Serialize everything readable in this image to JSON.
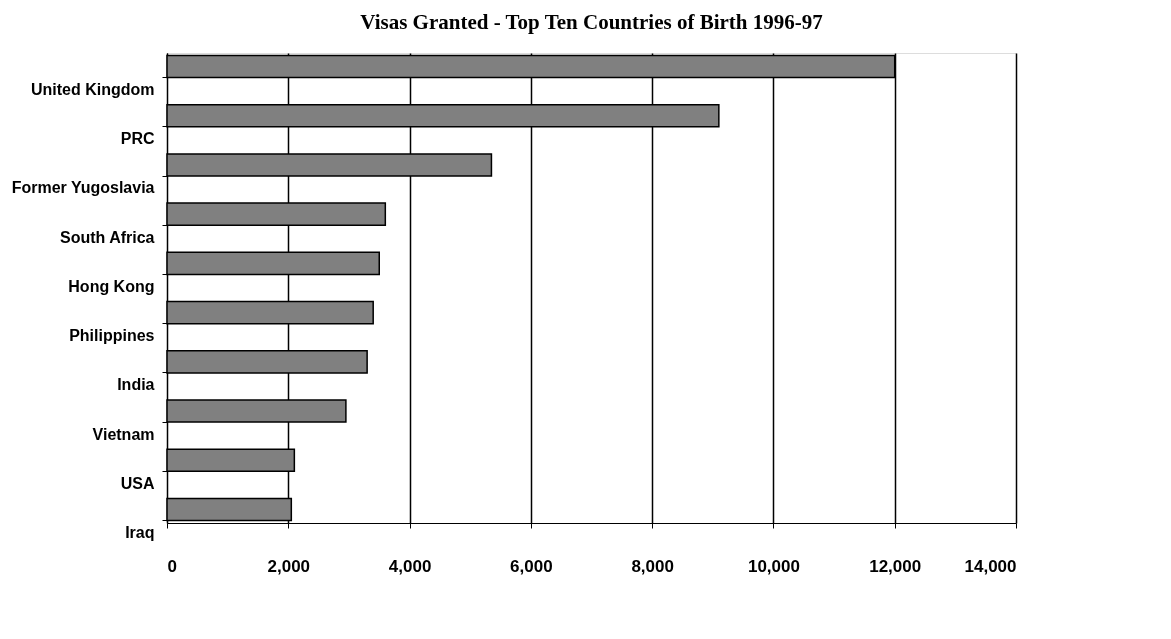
{
  "chart_data": {
    "type": "bar",
    "orientation": "horizontal",
    "title": "Visas Granted - Top Ten Countries of Birth 1996-97",
    "categories": [
      "United Kingdom",
      "PRC",
      "Former Yugoslavia",
      "South Africa",
      "Hong Kong",
      "Philippines",
      "India",
      "Vietnam",
      "USA",
      "Iraq"
    ],
    "values": [
      12000,
      9100,
      5350,
      3600,
      3500,
      3400,
      3300,
      2950,
      2100,
      2050
    ],
    "color": "#808080",
    "xlim": [
      0,
      14000
    ],
    "xticks": [
      {
        "value": 0,
        "label": "0"
      },
      {
        "value": 2000,
        "label": "2,000"
      },
      {
        "value": 4000,
        "label": "4,000"
      },
      {
        "value": 6000,
        "label": "6,000"
      },
      {
        "value": 8000,
        "label": "8,000"
      },
      {
        "value": 10000,
        "label": "10,000"
      },
      {
        "value": 12000,
        "label": "12,000"
      },
      {
        "value": 14000,
        "label": "14,000"
      }
    ],
    "grid": "x"
  }
}
